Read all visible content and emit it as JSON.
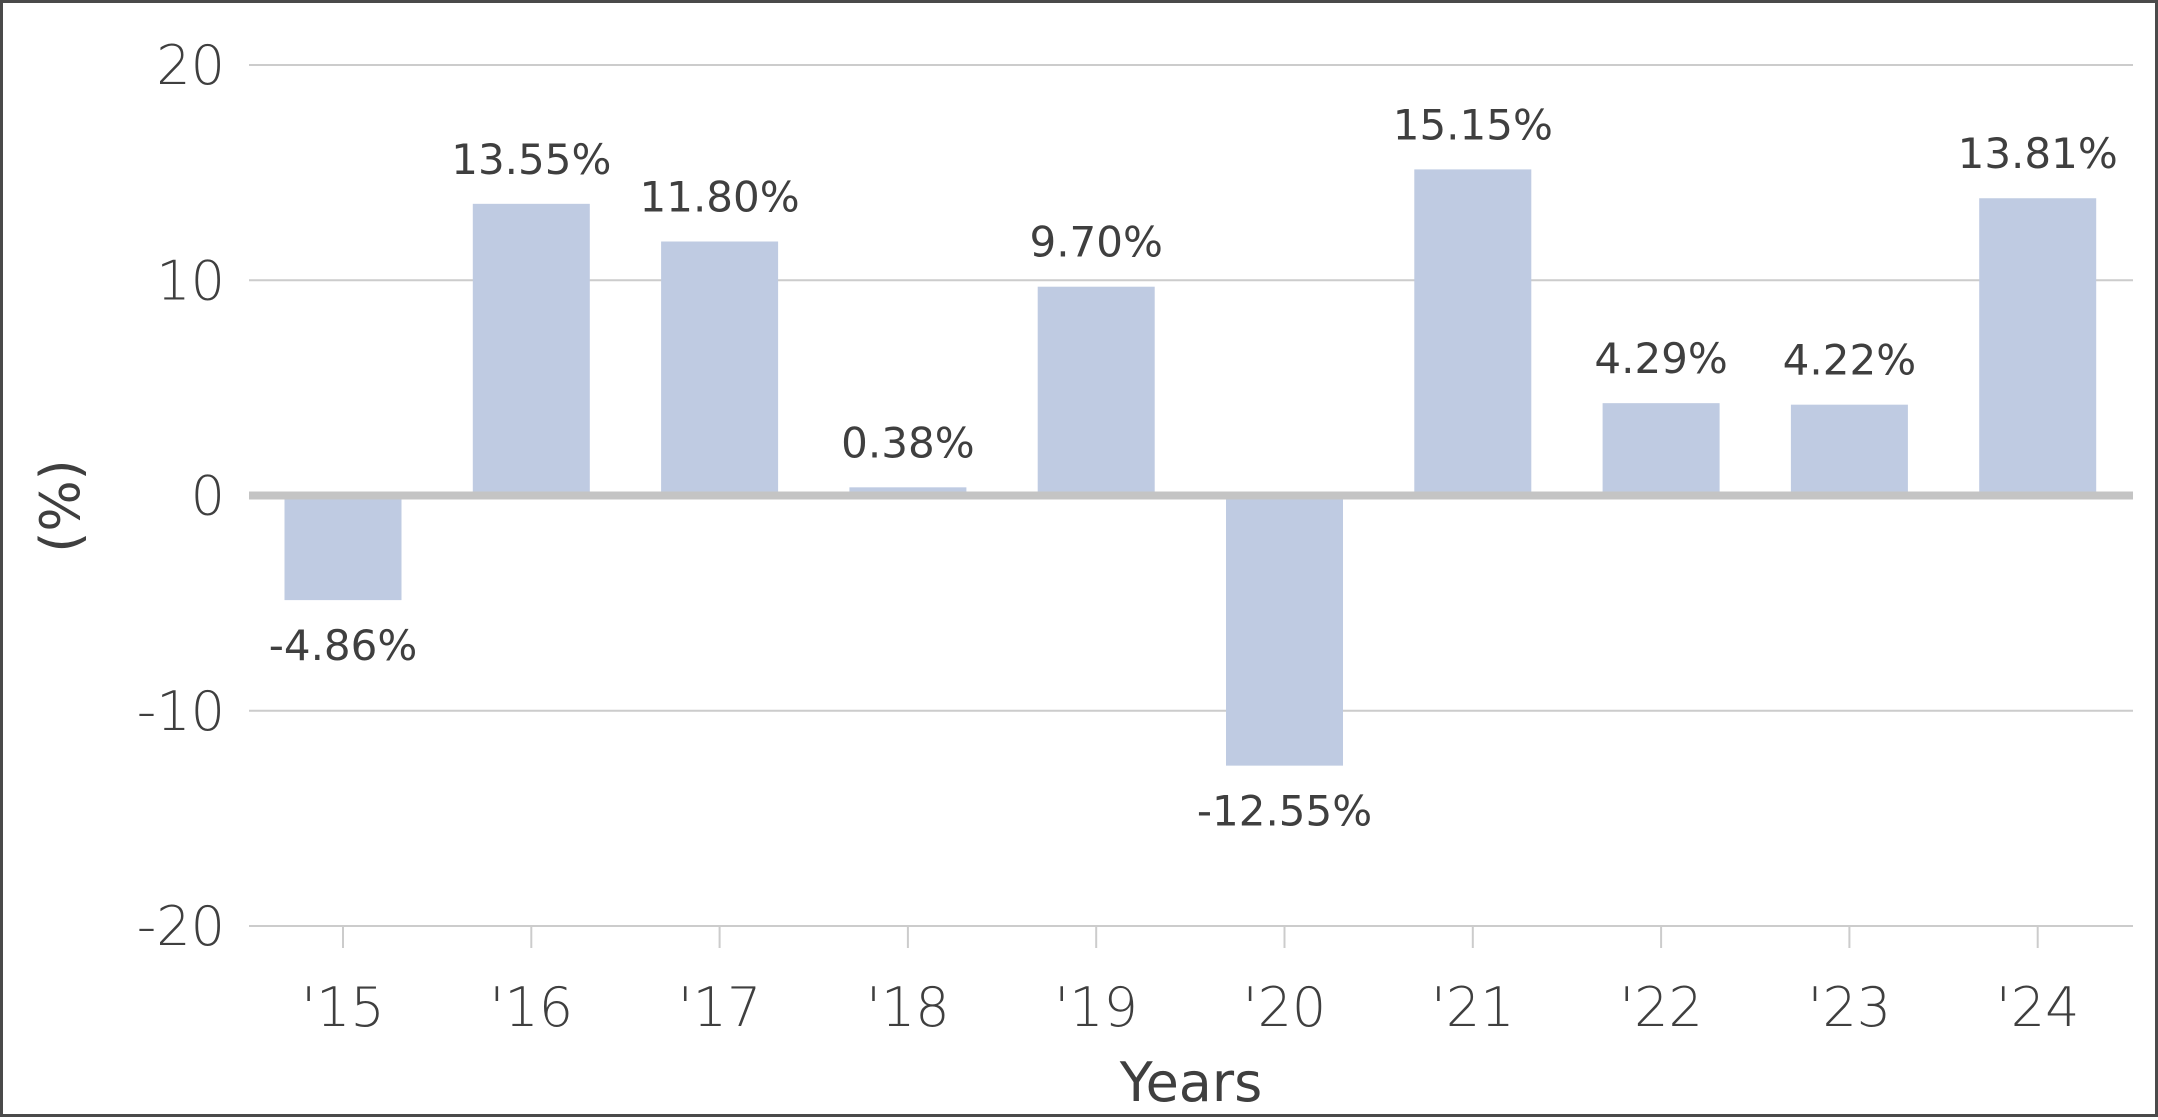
{
  "chart_data": {
    "type": "bar",
    "categories": [
      "'15",
      "'16",
      "'17",
      "'18",
      "'19",
      "'20",
      "'21",
      "'22",
      "'23",
      "'24"
    ],
    "values": [
      -4.86,
      13.55,
      11.8,
      0.38,
      9.7,
      -12.55,
      15.15,
      4.29,
      4.22,
      13.81
    ],
    "data_labels": [
      "-4.86%",
      "13.55%",
      "11.80%",
      "0.38%",
      "9.70%",
      "-12.55%",
      "15.15%",
      "4.29%",
      "4.22%",
      "13.81%"
    ],
    "title": "",
    "xlabel": "Years",
    "ylabel": "(%)",
    "ylim": [
      -20,
      20
    ],
    "yticks": [
      20,
      10,
      0,
      -10,
      -20
    ],
    "grid": true,
    "bar_color": "#bfcbe2",
    "grid_color": "#cccccc",
    "zero_line_color": "#c4c4c4",
    "text_color": "#3f3f3f"
  }
}
